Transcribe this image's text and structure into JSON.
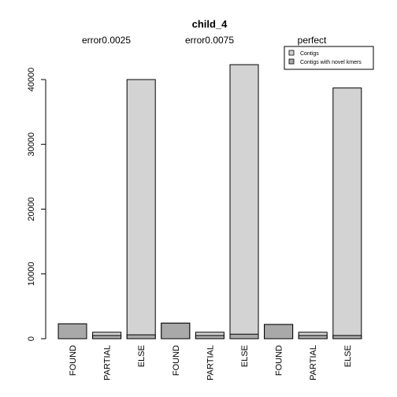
{
  "chart_data": {
    "type": "bar",
    "title": "child_4",
    "groups": [
      "error0.0025",
      "error0.0075",
      "perfect"
    ],
    "categories": [
      "FOUND",
      "PARTIAL",
      "ELSE",
      "FOUND",
      "PARTIAL",
      "ELSE",
      "FOUND",
      "PARTIAL",
      "ELSE"
    ],
    "series": [
      {
        "name": "Contigs",
        "color": "#d3d3d3",
        "values": [
          2300,
          1000,
          40000,
          2400,
          1000,
          42300,
          2200,
          1000,
          38700
        ]
      },
      {
        "name": "Contigs with novel kmers",
        "color": "#a9a9a9",
        "values": [
          2300,
          500,
          600,
          2400,
          500,
          700,
          2200,
          500,
          500
        ]
      }
    ],
    "yticks": [
      0,
      10000,
      20000,
      30000,
      40000
    ],
    "ylim": [
      0,
      43000
    ],
    "legend_position": "top-right"
  }
}
